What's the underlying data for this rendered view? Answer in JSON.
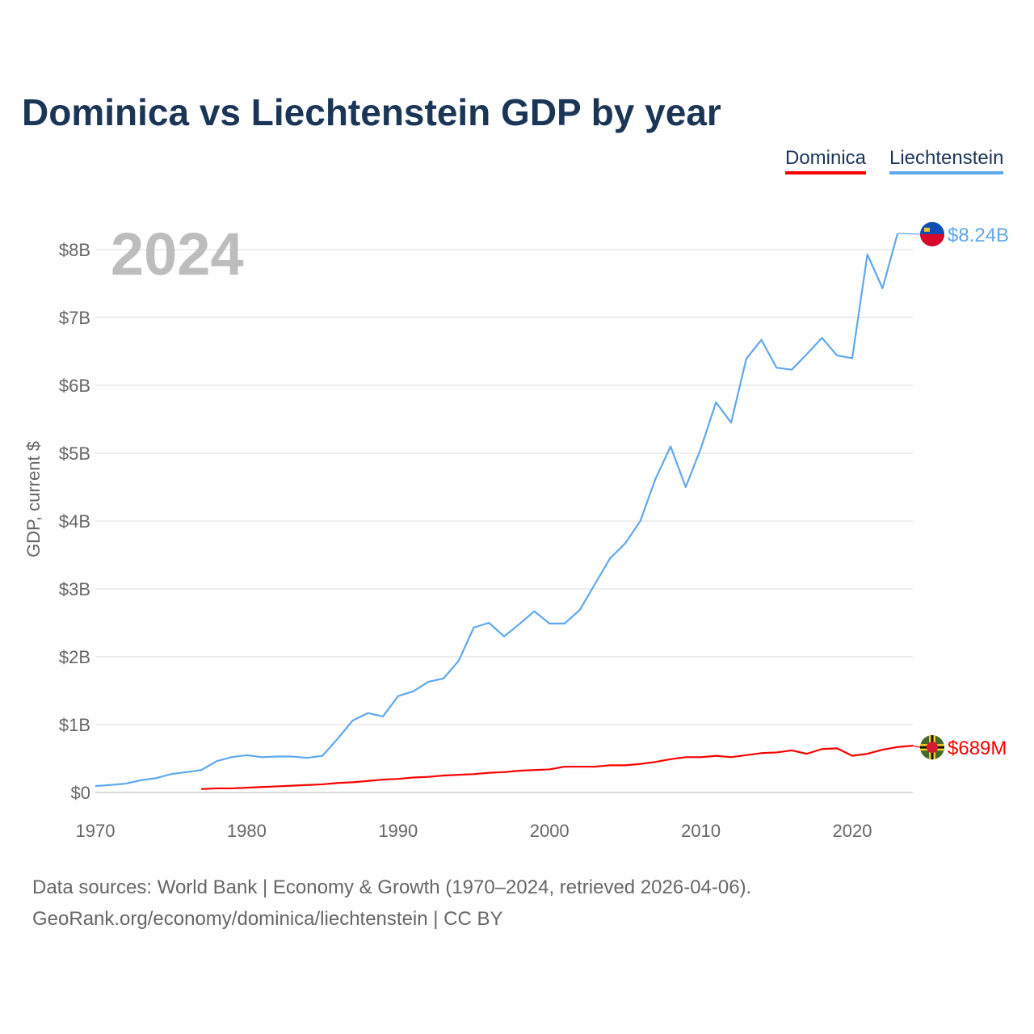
{
  "chart_data": {
    "type": "line",
    "title": "Dominica vs Liechtenstein GDP by year",
    "ylabel": "GDP, current $",
    "xlabel": "",
    "xlim": [
      1970,
      2024
    ],
    "ylim": [
      0,
      8.5
    ],
    "y_unit": "billion USD",
    "x_ticks": [
      "1970",
      "1980",
      "1990",
      "2000",
      "2010",
      "2020"
    ],
    "y_ticks": [
      "$0",
      "$1B",
      "$2B",
      "$3B",
      "$4B",
      "$5B",
      "$6B",
      "$7B",
      "$8B"
    ],
    "grid": true,
    "legend_placement": "top-right",
    "year_watermark": "2024",
    "series": [
      {
        "name": "Dominica",
        "color": "#ff0000",
        "end_label": "$689M",
        "flag": "dominica-flag",
        "x": [
          1977,
          1978,
          1979,
          1980,
          1981,
          1982,
          1983,
          1984,
          1985,
          1986,
          1987,
          1988,
          1989,
          1990,
          1991,
          1992,
          1993,
          1994,
          1995,
          1996,
          1997,
          1998,
          1999,
          2000,
          2001,
          2002,
          2003,
          2004,
          2005,
          2006,
          2007,
          2008,
          2009,
          2010,
          2011,
          2012,
          2013,
          2014,
          2015,
          2016,
          2017,
          2018,
          2019,
          2020,
          2021,
          2022,
          2023,
          2024
        ],
        "values": [
          0.05,
          0.06,
          0.06,
          0.07,
          0.08,
          0.09,
          0.1,
          0.11,
          0.12,
          0.14,
          0.15,
          0.17,
          0.19,
          0.2,
          0.22,
          0.23,
          0.25,
          0.26,
          0.27,
          0.29,
          0.3,
          0.32,
          0.33,
          0.34,
          0.38,
          0.38,
          0.38,
          0.4,
          0.4,
          0.42,
          0.45,
          0.49,
          0.52,
          0.52,
          0.54,
          0.52,
          0.55,
          0.58,
          0.59,
          0.62,
          0.57,
          0.64,
          0.65,
          0.54,
          0.57,
          0.63,
          0.67,
          0.689
        ]
      },
      {
        "name": "Liechtenstein",
        "color": "#5ea8ec",
        "end_label": "$8.24B",
        "flag": "liechtenstein-flag",
        "x": [
          1970,
          1971,
          1972,
          1973,
          1974,
          1975,
          1976,
          1977,
          1978,
          1979,
          1980,
          1981,
          1982,
          1983,
          1984,
          1985,
          1986,
          1987,
          1988,
          1989,
          1990,
          1991,
          1992,
          1993,
          1994,
          1995,
          1996,
          1997,
          1998,
          1999,
          2000,
          2001,
          2002,
          2003,
          2004,
          2005,
          2006,
          2007,
          2008,
          2009,
          2010,
          2011,
          2012,
          2013,
          2014,
          2015,
          2016,
          2017,
          2018,
          2019,
          2020,
          2021,
          2022,
          2023
        ],
        "values": [
          0.095,
          0.11,
          0.13,
          0.18,
          0.21,
          0.27,
          0.3,
          0.33,
          0.46,
          0.52,
          0.55,
          0.52,
          0.53,
          0.53,
          0.51,
          0.54,
          0.79,
          1.06,
          1.17,
          1.12,
          1.42,
          1.49,
          1.63,
          1.68,
          1.94,
          2.43,
          2.5,
          2.3,
          2.48,
          2.67,
          2.49,
          2.49,
          2.69,
          3.07,
          3.45,
          3.67,
          4.0,
          4.62,
          5.1,
          4.5,
          5.07,
          5.75,
          5.45,
          6.39,
          6.67,
          6.26,
          6.23,
          6.46,
          6.7,
          6.44,
          6.4,
          7.93,
          7.43,
          8.24
        ]
      }
    ]
  },
  "sources": {
    "line1": "Data sources: World Bank | Economy & Growth (1970–2024, retrieved 2026-04-06).",
    "line2": "GeoRank.org/economy/dominica/liechtenstein | CC BY"
  }
}
